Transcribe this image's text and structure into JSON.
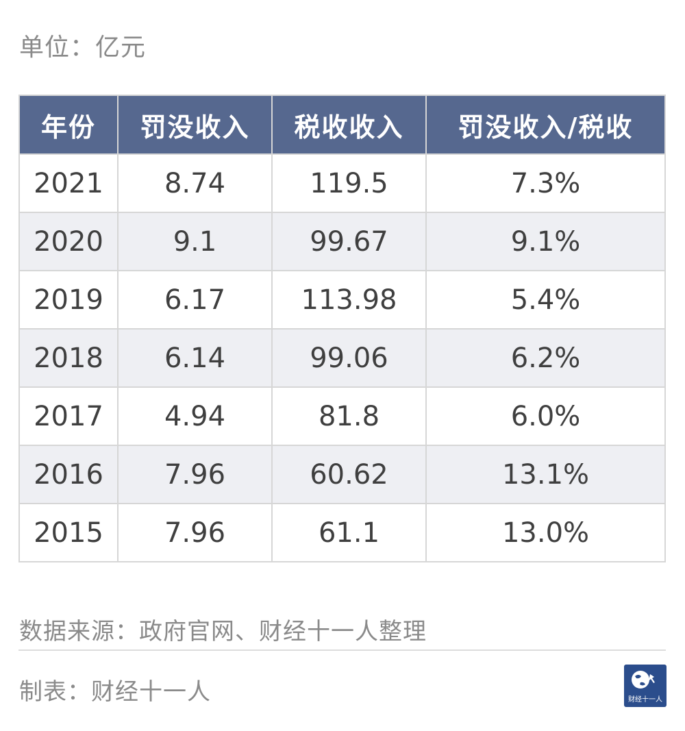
{
  "unit_label": "单位：亿元",
  "chart_data": {
    "type": "table",
    "columns": [
      "年份",
      "罚没收入",
      "税收收入",
      "罚没收入/税收"
    ],
    "rows": [
      [
        "2021",
        "8.74",
        "119.5",
        "7.3%"
      ],
      [
        "2020",
        "9.1",
        "99.67",
        "9.1%"
      ],
      [
        "2019",
        "6.17",
        "113.98",
        "5.4%"
      ],
      [
        "2018",
        "6.14",
        "99.06",
        "6.2%"
      ],
      [
        "2017",
        "4.94",
        "81.8",
        "6.0%"
      ],
      [
        "2016",
        "7.96",
        "60.62",
        "13.1%"
      ],
      [
        "2015",
        "7.96",
        "61.1",
        "13.0%"
      ]
    ]
  },
  "footer": {
    "source": "数据来源：政府官网、财经十一人整理",
    "maker": "制表：财经十一人",
    "logo_text": "财经十一人"
  },
  "colors": {
    "header_bg": "#56688f",
    "stripe_bg": "#eeeff3",
    "logo_bg": "#2b4d8c"
  }
}
